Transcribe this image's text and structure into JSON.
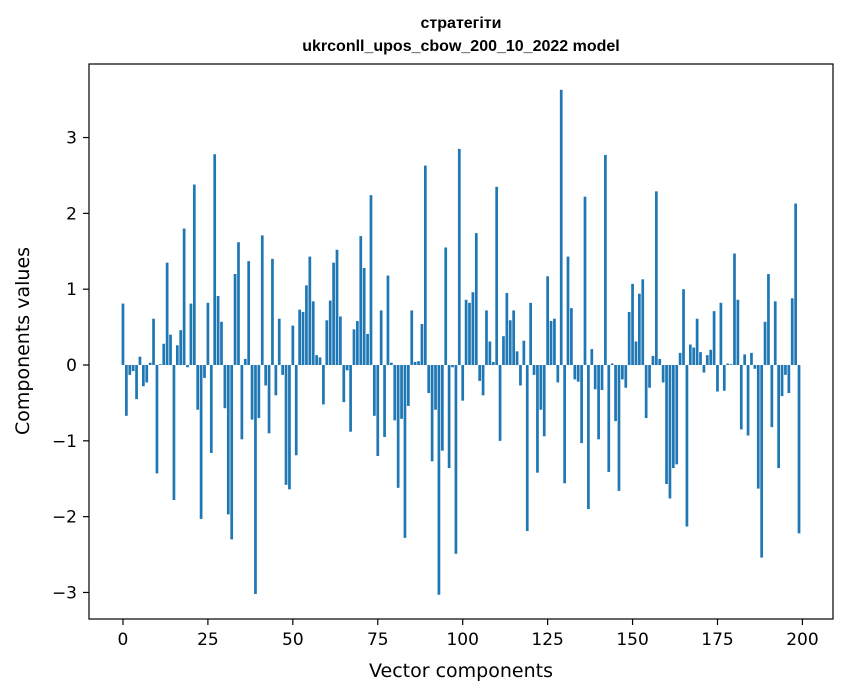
{
  "chart_data": {
    "type": "bar",
    "title_line1": "стратегіти",
    "title_line2": "ukrconll_upos_cbow_200_10_2022 model",
    "xlabel": "Vector components",
    "ylabel": "Components values",
    "xlim": [
      -10,
      209
    ],
    "ylim": [
      -3.35,
      3.97
    ],
    "xticks": [
      0,
      25,
      50,
      75,
      100,
      125,
      150,
      175,
      200
    ],
    "xtick_labels": [
      "0",
      "25",
      "50",
      "75",
      "100",
      "125",
      "150",
      "175",
      "200"
    ],
    "yticks": [
      -3,
      -2,
      -1,
      0,
      1,
      2,
      3
    ],
    "ytick_labels": [
      "−3",
      "−2",
      "−1",
      "0",
      "1",
      "2",
      "3"
    ],
    "bar_color": "#1f77b4",
    "x": [
      0,
      1,
      2,
      3,
      4,
      5,
      6,
      7,
      8,
      9,
      10,
      11,
      12,
      13,
      14,
      15,
      16,
      17,
      18,
      19,
      20,
      21,
      22,
      23,
      24,
      25,
      26,
      27,
      28,
      29,
      30,
      31,
      32,
      33,
      34,
      35,
      36,
      37,
      38,
      39,
      40,
      41,
      42,
      43,
      44,
      45,
      46,
      47,
      48,
      49,
      50,
      51,
      52,
      53,
      54,
      55,
      56,
      57,
      58,
      59,
      60,
      61,
      62,
      63,
      64,
      65,
      66,
      67,
      68,
      69,
      70,
      71,
      72,
      73,
      74,
      75,
      76,
      77,
      78,
      79,
      80,
      81,
      82,
      83,
      84,
      85,
      86,
      87,
      88,
      89,
      90,
      91,
      92,
      93,
      94,
      95,
      96,
      97,
      98,
      99,
      100,
      101,
      102,
      103,
      104,
      105,
      106,
      107,
      108,
      109,
      110,
      111,
      112,
      113,
      114,
      115,
      116,
      117,
      118,
      119,
      120,
      121,
      122,
      123,
      124,
      125,
      126,
      127,
      128,
      129,
      130,
      131,
      132,
      133,
      134,
      135,
      136,
      137,
      138,
      139,
      140,
      141,
      142,
      143,
      144,
      145,
      146,
      147,
      148,
      149,
      150,
      151,
      152,
      153,
      154,
      155,
      156,
      157,
      158,
      159,
      160,
      161,
      162,
      163,
      164,
      165,
      166,
      167,
      168,
      169,
      170,
      171,
      172,
      173,
      174,
      175,
      176,
      177,
      178,
      179,
      180,
      181,
      182,
      183,
      184,
      185,
      186,
      187,
      188,
      189,
      190,
      191,
      192,
      193,
      194,
      195,
      196,
      197,
      198,
      199
    ],
    "values": [
      0.81,
      -0.67,
      -0.13,
      -0.08,
      -0.45,
      0.11,
      -0.28,
      -0.23,
      0.03,
      0.61,
      -1.43,
      0.01,
      0.28,
      1.35,
      0.4,
      -1.78,
      0.26,
      0.46,
      1.8,
      -0.03,
      0.81,
      2.38,
      -0.59,
      -2.03,
      -0.17,
      0.82,
      -1.16,
      2.78,
      0.91,
      0.57,
      -0.57,
      -1.97,
      -2.3,
      1.2,
      1.62,
      -0.98,
      0.08,
      1.37,
      -0.72,
      -3.02,
      -0.7,
      1.71,
      -0.27,
      -0.9,
      1.4,
      -0.4,
      0.61,
      -0.13,
      -1.58,
      -1.64,
      0.52,
      -1.19,
      0.73,
      0.7,
      1.05,
      1.43,
      0.84,
      0.13,
      0.1,
      -0.52,
      0.59,
      0.85,
      1.35,
      1.52,
      0.64,
      -0.49,
      -0.07,
      -0.88,
      0.47,
      0.58,
      1.7,
      1.28,
      0.41,
      2.24,
      -0.67,
      -1.2,
      0.72,
      -0.95,
      1.18,
      0.03,
      -0.73,
      -1.62,
      -0.71,
      -2.28,
      -0.54,
      0.72,
      0.04,
      0.05,
      0.54,
      2.63,
      -0.37,
      -1.27,
      -0.59,
      -3.03,
      -1.13,
      1.55,
      -1.36,
      -0.03,
      -2.49,
      2.85,
      -0.47,
      0.86,
      0.82,
      0.96,
      1.74,
      -0.21,
      -0.4,
      0.72,
      0.31,
      0.04,
      2.35,
      -1.0,
      0.38,
      0.95,
      0.59,
      0.72,
      0.18,
      -0.27,
      0.32,
      -2.19,
      0.82,
      -0.13,
      -1.42,
      -0.59,
      -0.94,
      1.17,
      0.58,
      0.61,
      -0.23,
      3.63,
      -1.56,
      1.43,
      0.75,
      -0.19,
      -0.22,
      -1.03,
      2.22,
      -1.9,
      0.21,
      -0.32,
      -0.98,
      -0.33,
      2.77,
      -1.41,
      0.02,
      -0.74,
      -1.66,
      -0.19,
      -0.3,
      0.7,
      1.07,
      0.31,
      0.94,
      1.13,
      -0.7,
      -0.3,
      0.12,
      2.29,
      0.08,
      -0.23,
      -1.57,
      -1.76,
      -1.36,
      -1.31,
      0.16,
      1.0,
      -2.13,
      0.27,
      0.23,
      0.61,
      0.17,
      -0.1,
      0.13,
      0.2,
      0.71,
      -0.35,
      0.82,
      -0.34,
      0.02,
      0.01,
      1.47,
      0.86,
      -0.85,
      0.14,
      -0.93,
      0.16,
      -0.05,
      -1.63,
      -2.54,
      0.57,
      1.2,
      -0.82,
      0.84,
      -1.36,
      -0.41,
      -0.13,
      -0.37,
      0.88,
      2.13,
      -2.22
    ]
  }
}
